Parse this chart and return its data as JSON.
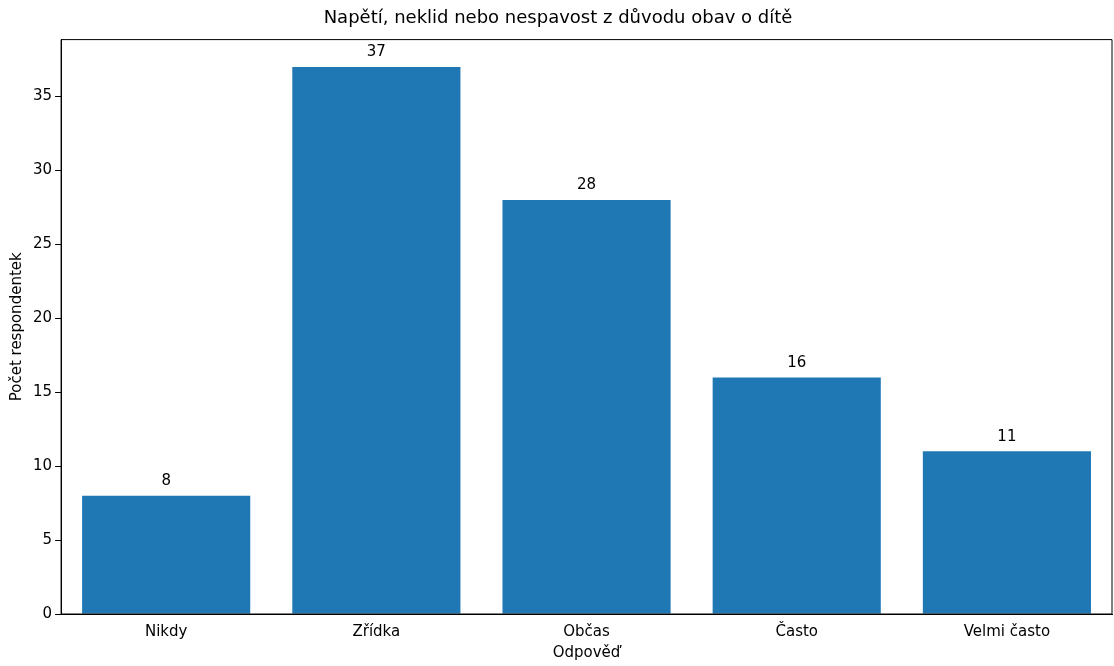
{
  "chart_data": {
    "type": "bar",
    "title": "Napětí, neklid nebo nespavost z důvodu obav o dítě",
    "xlabel": "Odpověď",
    "ylabel": "Počet respondentek",
    "categories": [
      "Nikdy",
      "Zřídka",
      "Občas",
      "Často",
      "Velmi často"
    ],
    "values": [
      8,
      37,
      28,
      16,
      11
    ],
    "color": "#1f77b4",
    "ylim": [
      0,
      38.85
    ],
    "yticks": [
      0,
      5,
      10,
      15,
      20,
      25,
      30,
      35
    ],
    "grid": false,
    "legend": false,
    "data_labels": true
  }
}
